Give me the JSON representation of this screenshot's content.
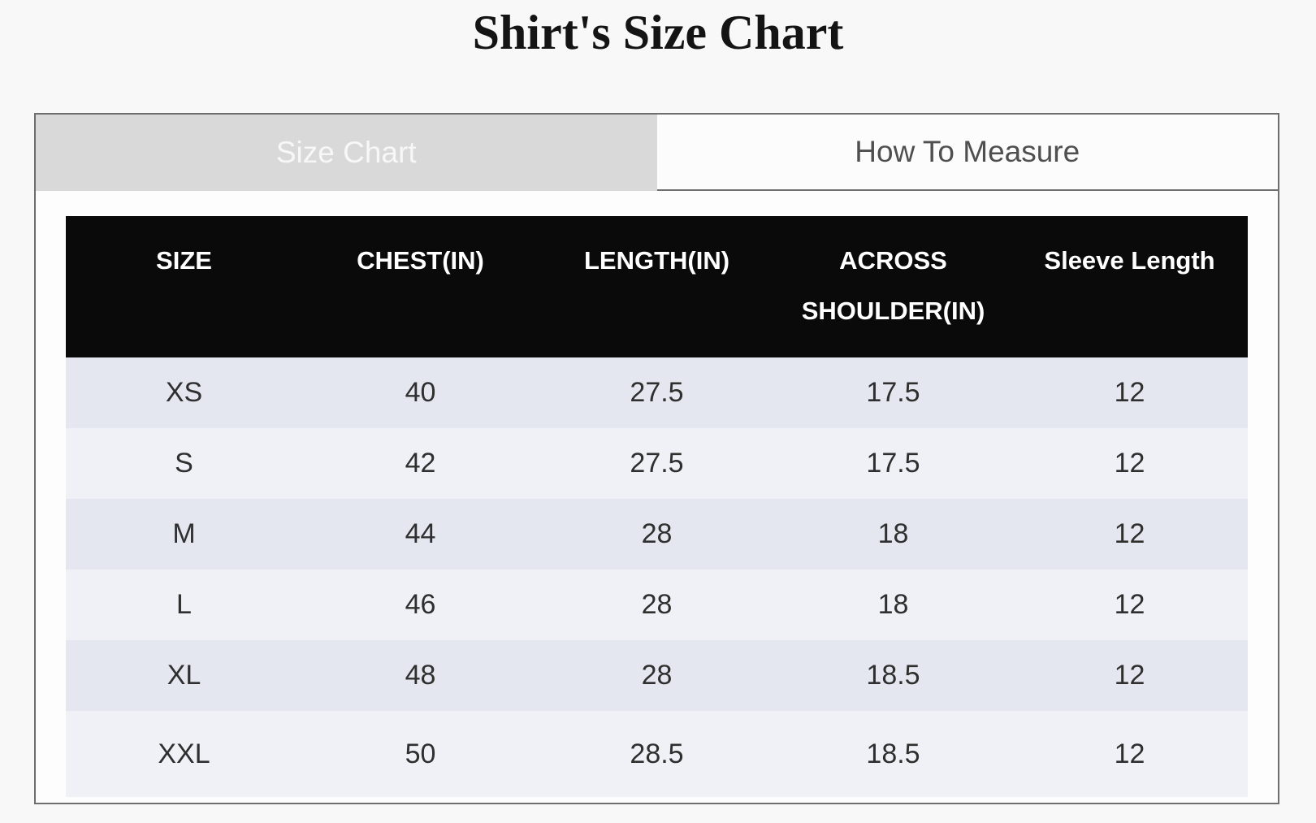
{
  "page": {
    "title": "Shirt's Size Chart"
  },
  "tabs": {
    "size_chart": {
      "label": "Size Chart",
      "active": true
    },
    "how_to_measure": {
      "label": "How To Measure",
      "active": false
    }
  },
  "colors": {
    "page_background": "#f8f8f8",
    "panel_border": "#6e6e6e",
    "active_tab_background": "#d9d9d9",
    "active_tab_text": "#f7f7f7",
    "inactive_tab_background": "#fcfcfc",
    "inactive_tab_text": "#4f4f4f",
    "table_header_background": "#0a0a0a",
    "table_header_text": "#ffffff",
    "row_stripe_dark": "#e4e7ef",
    "row_stripe_light": "#f0f1f6"
  },
  "size_table": {
    "columns": [
      "SIZE",
      "CHEST(IN)",
      "LENGTH(IN)",
      "ACROSS SHOULDER(IN)",
      "Sleeve Length"
    ],
    "rows": [
      [
        "XS",
        "40",
        "27.5",
        "17.5",
        "12"
      ],
      [
        "S",
        "42",
        "27.5",
        "17.5",
        "12"
      ],
      [
        "M",
        "44",
        "28",
        "18",
        "12"
      ],
      [
        "L",
        "46",
        "28",
        "18",
        "12"
      ],
      [
        "XL",
        "48",
        "28",
        "18.5",
        "12"
      ],
      [
        "XXL",
        "50",
        "28.5",
        "18.5",
        "12"
      ]
    ]
  }
}
